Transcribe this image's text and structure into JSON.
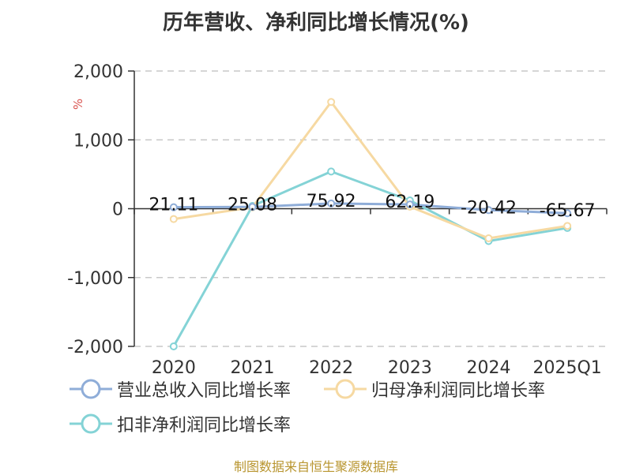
{
  "title": "历年营收、净利同比增长情况(%)",
  "unit_label": "%",
  "source": "制图数据来自恒生聚源数据库",
  "colors": {
    "revenue": "#8fadd8",
    "net_profit": "#f6d9a2",
    "deducted_profit": "#84d3d6",
    "grid": "#c8c8c8",
    "axis": "#333333",
    "unit": "#d9534f"
  },
  "chart_data": {
    "type": "line",
    "title": "历年营收、净利同比增长情况(%)",
    "x": [
      "2020",
      "2021",
      "2022",
      "2023",
      "2024",
      "2025Q1"
    ],
    "ylim": [
      -2000,
      2000
    ],
    "yticks": [
      -2000,
      -1000,
      0,
      1000,
      2000
    ],
    "ytick_labels": [
      "-2,000",
      "-1,000",
      "0",
      "1,000",
      "2,000"
    ],
    "ylabel": "%",
    "grid": true,
    "legend_position": "bottom",
    "series": [
      {
        "name": "营业总收入同比增长率",
        "color_key": "revenue",
        "values": [
          21.11,
          25.08,
          75.92,
          62.19,
          -20.42,
          -65.67
        ],
        "data_labels": [
          "21.11",
          "25.08",
          "75.92",
          "62.19",
          "-20.42",
          "-65.67"
        ]
      },
      {
        "name": "归母净利润同比增长率",
        "color_key": "net_profit",
        "values": [
          -150,
          20,
          1550,
          30,
          -430,
          -250
        ]
      },
      {
        "name": "扣非净利润同比增长率",
        "color_key": "deducted_profit",
        "values": [
          -2000,
          40,
          540,
          120,
          -470,
          -280
        ]
      }
    ]
  }
}
